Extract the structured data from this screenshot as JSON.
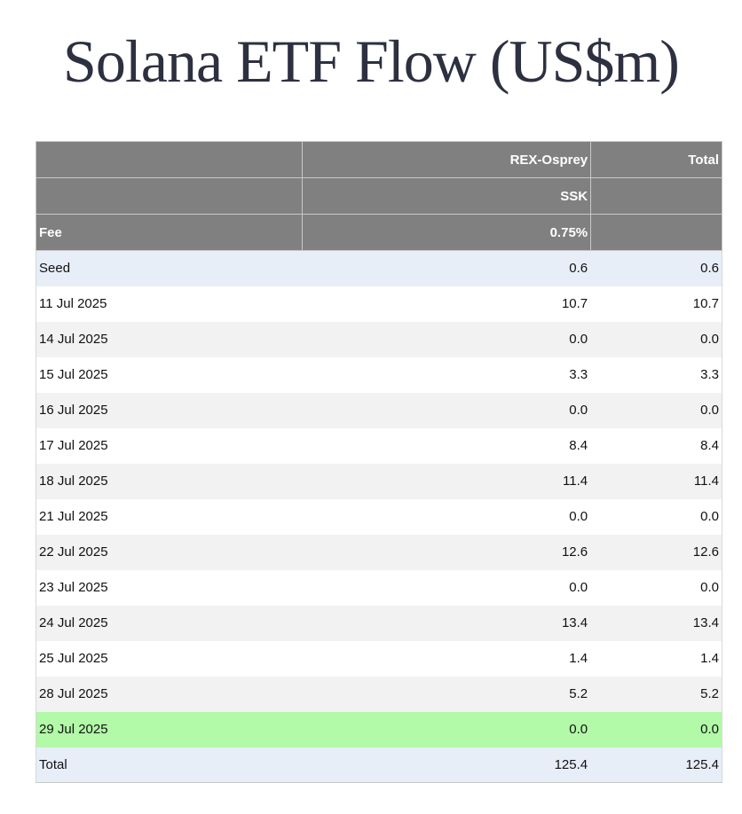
{
  "title": "Solana ETF Flow (US$m)",
  "header_rows": [
    {
      "c1": "",
      "c2": "REX-Osprey",
      "c3": "Total"
    },
    {
      "c1": "",
      "c2": "SSK",
      "c3": ""
    },
    {
      "c1": "Fee",
      "c2": "0.75%",
      "c3": ""
    }
  ],
  "rows": [
    {
      "label": "Seed",
      "ssk": "0.6",
      "total": "0.6",
      "style": "blue"
    },
    {
      "label": "11 Jul 2025",
      "ssk": "10.7",
      "total": "10.7",
      "style": "white"
    },
    {
      "label": "14 Jul 2025",
      "ssk": "0.0",
      "total": "0.0",
      "style": "grey"
    },
    {
      "label": "15 Jul 2025",
      "ssk": "3.3",
      "total": "3.3",
      "style": "white"
    },
    {
      "label": "16 Jul 2025",
      "ssk": "0.0",
      "total": "0.0",
      "style": "grey"
    },
    {
      "label": "17 Jul 2025",
      "ssk": "8.4",
      "total": "8.4",
      "style": "white"
    },
    {
      "label": "18 Jul 2025",
      "ssk": "11.4",
      "total": "11.4",
      "style": "grey"
    },
    {
      "label": "21 Jul 2025",
      "ssk": "0.0",
      "total": "0.0",
      "style": "white"
    },
    {
      "label": "22 Jul 2025",
      "ssk": "12.6",
      "total": "12.6",
      "style": "grey"
    },
    {
      "label": "23 Jul 2025",
      "ssk": "0.0",
      "total": "0.0",
      "style": "white"
    },
    {
      "label": "24 Jul 2025",
      "ssk": "13.4",
      "total": "13.4",
      "style": "grey"
    },
    {
      "label": "25 Jul 2025",
      "ssk": "1.4",
      "total": "1.4",
      "style": "white"
    },
    {
      "label": "28 Jul 2025",
      "ssk": "5.2",
      "total": "5.2",
      "style": "grey"
    },
    {
      "label": "29 Jul 2025",
      "ssk": "0.0",
      "total": "0.0",
      "style": "green"
    },
    {
      "label": "Total",
      "ssk": "125.4",
      "total": "125.4",
      "style": "total"
    }
  ],
  "colors": {
    "header_bg": "#808080",
    "seed_total_bg": "#e8eef8",
    "stripe_bg": "#f2f2f2",
    "latest_row_bg": "#b2f9a8"
  }
}
